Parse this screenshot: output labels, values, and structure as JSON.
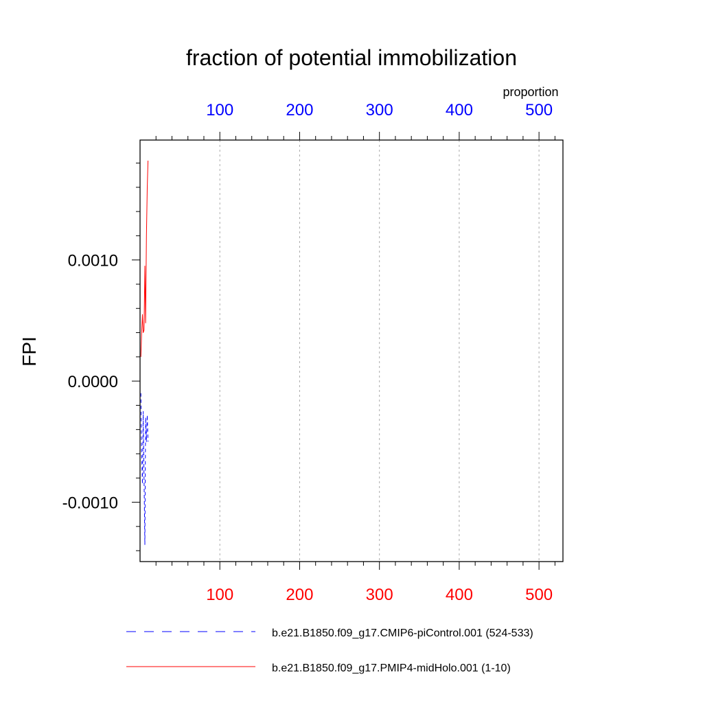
{
  "chart_data": {
    "type": "line",
    "title": "fraction of potential immobilization",
    "ylabel": "FPI",
    "top_axis_label": "proportion",
    "xlim": [
      0,
      530
    ],
    "ylim": [
      -0.00149,
      0.00199
    ],
    "grid": "vertical dashed at major x ticks",
    "legend_position": "bottom",
    "x_ticks": [
      100,
      200,
      300,
      400,
      500
    ],
    "x_tick_labels": [
      "100",
      "200",
      "300",
      "400",
      "500"
    ],
    "top_tick_labels": [
      "100",
      "200",
      "300",
      "400",
      "500"
    ],
    "top_tick_color": "#0000ff",
    "bottom_tick_color": "#ff0000",
    "y_ticks": [
      -0.001,
      0.0,
      0.001
    ],
    "y_tick_labels": [
      "-0.0010",
      "0.0000",
      "0.0010"
    ],
    "series": [
      {
        "name": "b.e21.B1850.f09_g17.CMIP6-piControl.001 (524-533)",
        "color": "#0000ff",
        "dash": "dashed",
        "x": [
          1,
          2,
          3,
          4,
          5,
          6,
          7,
          8,
          9,
          10
        ],
        "y": [
          -0.0001,
          -0.0006,
          -0.00085,
          -0.00025,
          -0.0008,
          -0.00135,
          -0.0003,
          -0.0005,
          -0.00028,
          -0.0005
        ]
      },
      {
        "name": "b.e21.B1850.f09_g17.PMIP4-midHolo.001 (1-10)",
        "color": "#ff0000",
        "dash": "solid",
        "x": [
          1,
          2,
          3,
          4,
          5,
          6,
          7,
          8,
          9,
          10
        ],
        "y": [
          0.0002,
          0.0004,
          0.00055,
          0.0004,
          0.00042,
          0.00095,
          0.00048,
          0.0012,
          0.0016,
          0.00182
        ]
      }
    ]
  }
}
